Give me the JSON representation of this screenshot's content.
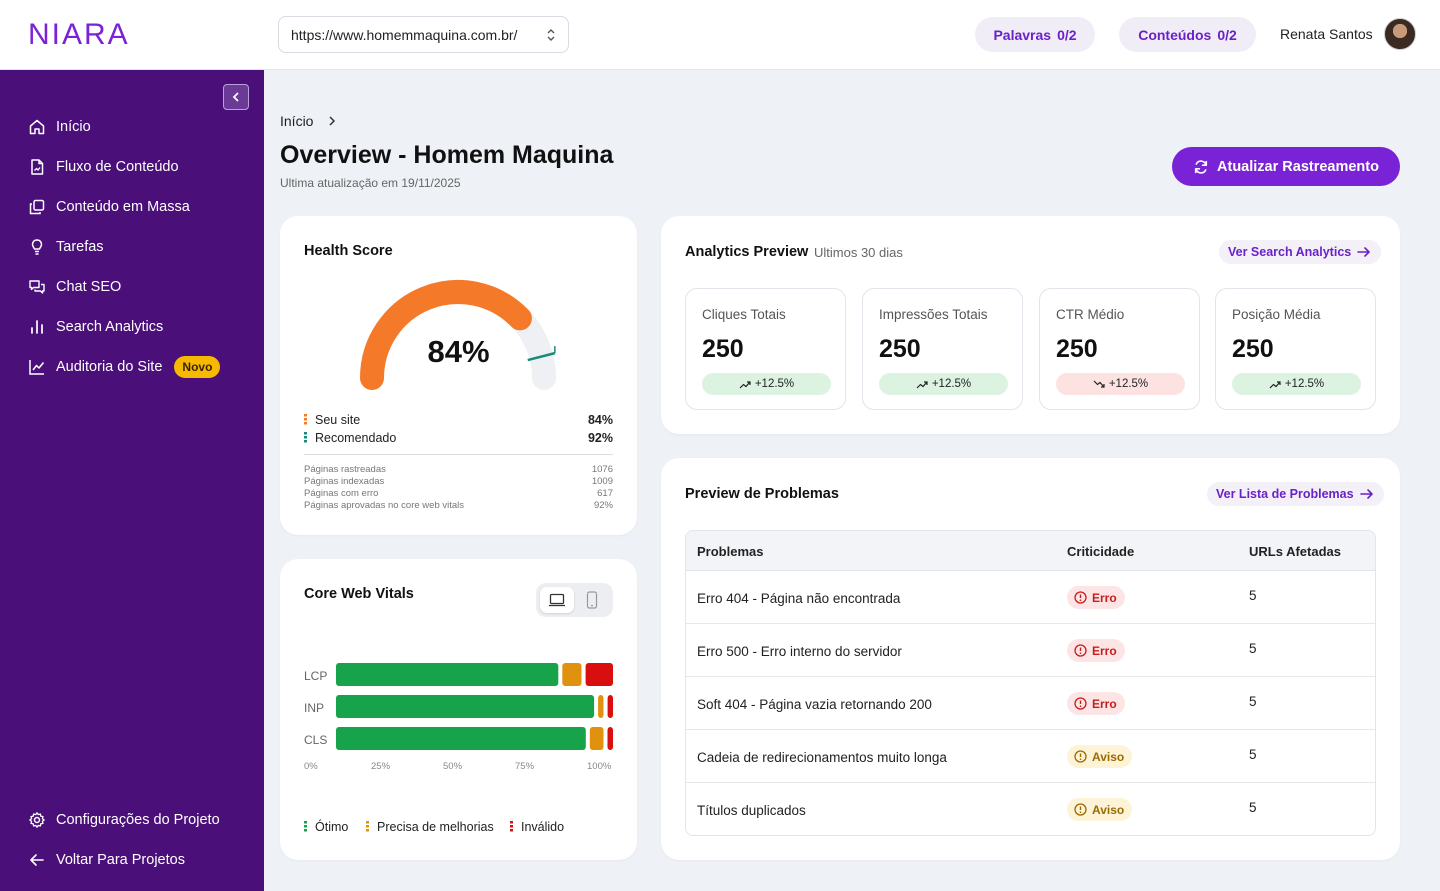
{
  "header": {
    "logo_text": "NIARA",
    "url_value": "https://www.homemmaquina.com.br/",
    "palavras_label": "Palavras",
    "palavras_count": "0/2",
    "conteudos_label": "Conteúdos",
    "conteudos_count": "0/2",
    "user_name": "Renata Santos"
  },
  "sidebar": {
    "items": [
      {
        "label": "Início",
        "icon": "home-icon"
      },
      {
        "label": "Fluxo de Conteúdo",
        "icon": "file-flow-icon"
      },
      {
        "label": "Conteúdo em Massa",
        "icon": "copy-icon"
      },
      {
        "label": "Tarefas",
        "icon": "lightbulb-icon"
      },
      {
        "label": "Chat SEO",
        "icon": "chat-icon"
      },
      {
        "label": "Search Analytics",
        "icon": "bar-chart-icon"
      },
      {
        "label": "Auditoria do Site",
        "icon": "line-chart-icon",
        "badge": "Novo"
      }
    ],
    "bottom": [
      {
        "label": "Configurações do Projeto",
        "icon": "gear-icon"
      },
      {
        "label": "Voltar Para Projetos",
        "icon": "arrow-left-icon"
      }
    ]
  },
  "page": {
    "breadcrumb": "Início",
    "title": "Overview - Homem Maquina",
    "subtitle": "Ultima atualização em 19/11/2025",
    "refresh_button": "Atualizar Rastreamento"
  },
  "health": {
    "title": "Health Score",
    "score": 84,
    "score_label": "84%",
    "recommended": 92,
    "legend": [
      {
        "label": "Seu site",
        "value": "84%",
        "color": "#f47a2a"
      },
      {
        "label": "Recomendado",
        "value": "92%",
        "color": "#1a8a7a"
      }
    ],
    "stats": [
      {
        "label": "Páginas rastreadas",
        "value": "1076"
      },
      {
        "label": "Páginas indexadas",
        "value": "1009"
      },
      {
        "label": "Páginas com erro",
        "value": "617"
      },
      {
        "label": "Páginas aprovadas no core web vitals",
        "value": "92%"
      }
    ]
  },
  "cwv": {
    "title": "Core Web Vitals",
    "metrics": [
      {
        "label": "LCP",
        "good": 81,
        "improve": 7,
        "poor": 10
      },
      {
        "label": "INP",
        "good": 95,
        "improve": 2,
        "poor": 2
      },
      {
        "label": "CLS",
        "good": 91,
        "improve": 5,
        "poor": 2
      }
    ],
    "ticks": [
      "0%",
      "25%",
      "50%",
      "75%",
      "100%"
    ],
    "legend": [
      {
        "label": "Ótimo",
        "color": "#16a34a"
      },
      {
        "label": "Precisa de melhorias",
        "color": "#e0920f"
      },
      {
        "label": "Inválido",
        "color": "#d90e0e"
      }
    ]
  },
  "analytics": {
    "title": "Analytics Preview",
    "period": "Ultimos 30 dias",
    "link": "Ver Search Analytics",
    "metrics": [
      {
        "label": "Cliques Totais",
        "value": "250",
        "delta": "+12.5%",
        "trend": "up"
      },
      {
        "label": "Impressões Totais",
        "value": "250",
        "delta": "+12.5%",
        "trend": "up"
      },
      {
        "label": "CTR Médio",
        "value": "250",
        "delta": "+12.5%",
        "trend": "down"
      },
      {
        "label": "Posição Média",
        "value": "250",
        "delta": "+12.5%",
        "trend": "up"
      }
    ]
  },
  "problems": {
    "title": "Preview de Problemas",
    "link": "Ver Lista de Problemas",
    "columns": [
      "Problemas",
      "Criticidade",
      "URLs Afetadas"
    ],
    "rows": [
      {
        "name": "Erro 404 - Página não encontrada",
        "severity": "Erro",
        "urls": "5"
      },
      {
        "name": "Erro 500 - Erro interno do servidor",
        "severity": "Erro",
        "urls": "5"
      },
      {
        "name": "Soft 404 - Página vazia retornando 200",
        "severity": "Erro",
        "urls": "5"
      },
      {
        "name": "Cadeia de redirecionamentos muito longa",
        "severity": "Aviso",
        "urls": "5"
      },
      {
        "name": "Títulos duplicados",
        "severity": "Aviso",
        "urls": "5"
      }
    ]
  },
  "colors": {
    "brand": "#7a22d6",
    "sidebar": "#4a0f78",
    "gauge_fill": "#f47a2a",
    "gauge_track": "#eef0f4",
    "recommended_marker": "#1a8a7a"
  }
}
